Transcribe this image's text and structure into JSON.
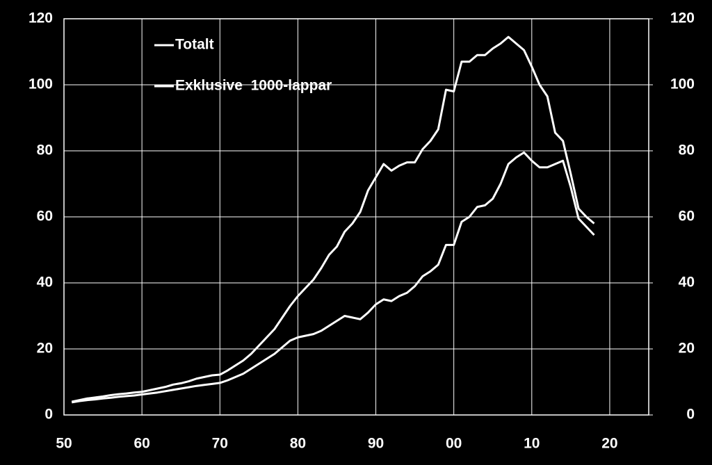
{
  "chart_data": {
    "type": "line",
    "x": [
      1951,
      1952,
      1953,
      1954,
      1955,
      1956,
      1957,
      1958,
      1959,
      1960,
      1961,
      1962,
      1963,
      1964,
      1965,
      1966,
      1967,
      1968,
      1969,
      1970,
      1971,
      1972,
      1973,
      1974,
      1975,
      1976,
      1977,
      1978,
      1979,
      1980,
      1981,
      1982,
      1983,
      1984,
      1985,
      1986,
      1987,
      1988,
      1989,
      1990,
      1991,
      1992,
      1993,
      1994,
      1995,
      1996,
      1997,
      1998,
      1999,
      2000,
      2001,
      2002,
      2003,
      2004,
      2005,
      2006,
      2007,
      2008,
      2009,
      2010,
      2011,
      2012,
      2013,
      2014,
      2015,
      2016,
      2017,
      2018
    ],
    "series": [
      {
        "name": "Totalt",
        "color": "#ffffff",
        "values": [
          4,
          4.5,
          5,
          5.3,
          5.6,
          6,
          6.3,
          6.5,
          6.8,
          7,
          7.5,
          8,
          8.5,
          9.2,
          9.6,
          10.2,
          11,
          11.5,
          12,
          12.2,
          13.5,
          15,
          16.5,
          18.5,
          21,
          23.5,
          26,
          29.5,
          33,
          36,
          38.5,
          41,
          44.5,
          48.5,
          51,
          55.5,
          58,
          61.5,
          68,
          72,
          76,
          74,
          75.5,
          76.5,
          76.5,
          80.5,
          83,
          86.5,
          98.5,
          98,
          107,
          107,
          109,
          109,
          111,
          112.5,
          114.5,
          112.5,
          110.5,
          105.5,
          100,
          96.5,
          85.5,
          83,
          73,
          62.5,
          60,
          58
        ]
      },
      {
        "name": "Exklusive  1000-lappar",
        "color": "#ffffff",
        "values": [
          3.8,
          4.2,
          4.5,
          4.7,
          5,
          5.2,
          5.5,
          5.7,
          5.9,
          6.2,
          6.5,
          6.8,
          7.2,
          7.6,
          8,
          8.4,
          8.8,
          9.1,
          9.4,
          9.7,
          10.5,
          11.5,
          12.5,
          14,
          15.5,
          17,
          18.5,
          20.5,
          22.5,
          23.5,
          24,
          24.5,
          25.5,
          27,
          28.5,
          30,
          29.5,
          29,
          31,
          33.5,
          35,
          34.5,
          36,
          37,
          39,
          42,
          43.5,
          45.5,
          51.5,
          51.5,
          58.5,
          60,
          63,
          63.5,
          65.5,
          70,
          76,
          78,
          79.5,
          77,
          75,
          75,
          76,
          77,
          69,
          59.5,
          57,
          54.5
        ]
      }
    ],
    "xlim": [
      1950,
      2025
    ],
    "xticks": [
      {
        "value": 1950,
        "label": "50"
      },
      {
        "value": 1960,
        "label": "60"
      },
      {
        "value": 1970,
        "label": "70"
      },
      {
        "value": 1980,
        "label": "80"
      },
      {
        "value": 1990,
        "label": "90"
      },
      {
        "value": 2000,
        "label": "00"
      },
      {
        "value": 2010,
        "label": "10"
      },
      {
        "value": 2020,
        "label": "20"
      }
    ],
    "ylim": [
      0,
      120
    ],
    "yticks": [
      0,
      20,
      40,
      60,
      80,
      100,
      120
    ],
    "y2lim": [
      0,
      120
    ],
    "y2ticks": [
      0,
      20,
      40,
      60,
      80,
      100,
      120
    ],
    "grid": true,
    "legend": "upper-left"
  }
}
